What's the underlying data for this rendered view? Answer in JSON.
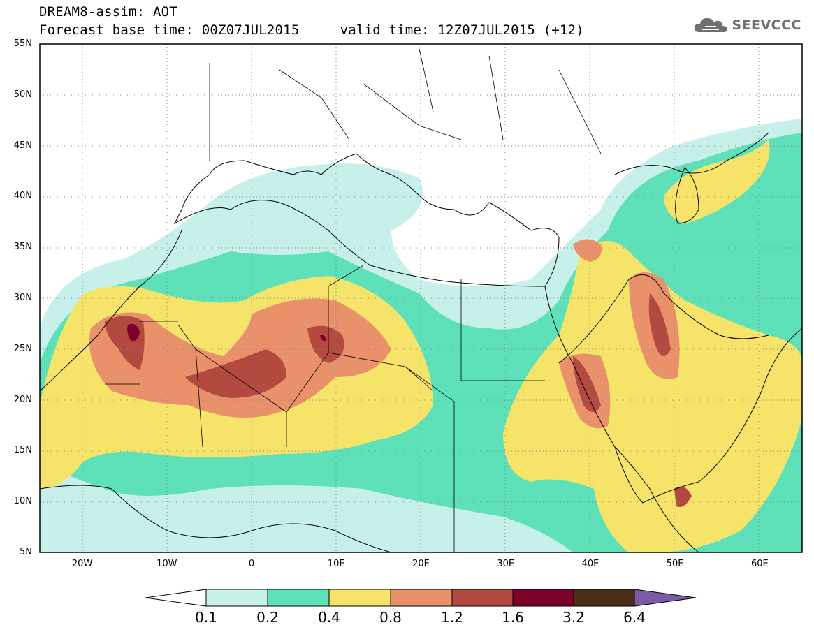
{
  "header": {
    "title": "DREAM8-assim: AOT",
    "base_time": "Forecast base time: 00Z07JUL2015",
    "valid_time": "valid time: 12Z07JUL2015 (+12)"
  },
  "logo": {
    "text": "SEEVCCC",
    "icon": "cloud-icon"
  },
  "map": {
    "lon_range": [
      -25,
      65
    ],
    "lat_range": [
      5,
      55
    ],
    "lon_ticks": [
      "20W",
      "10W",
      "0",
      "10E",
      "20E",
      "30E",
      "40E",
      "50E",
      "60E"
    ],
    "lat_ticks": [
      "5N",
      "10N",
      "15N",
      "20N",
      "25N",
      "30N",
      "35N",
      "40N",
      "45N",
      "50N",
      "55N"
    ],
    "grid": "dotted"
  },
  "colorbar": {
    "labels": [
      "0.1",
      "0.2",
      "0.4",
      "0.8",
      "1.2",
      "1.6",
      "3.2",
      "6.4"
    ],
    "colors": [
      "#ffffff",
      "#c8f0ea",
      "#5ee1b9",
      "#f6e46a",
      "#e9916a",
      "#b24a3f",
      "#7c0027",
      "#4a2e17",
      "#7a5ca6"
    ]
  },
  "chart_data": {
    "type": "heatmap",
    "title": "DREAM8-assim: AOT",
    "xlabel": "",
    "ylabel": "",
    "xlim": [
      -25,
      65
    ],
    "ylim": [
      5,
      55
    ],
    "levels": [
      0.1,
      0.2,
      0.4,
      0.8,
      1.2,
      1.6,
      3.2,
      6.4
    ]
  }
}
